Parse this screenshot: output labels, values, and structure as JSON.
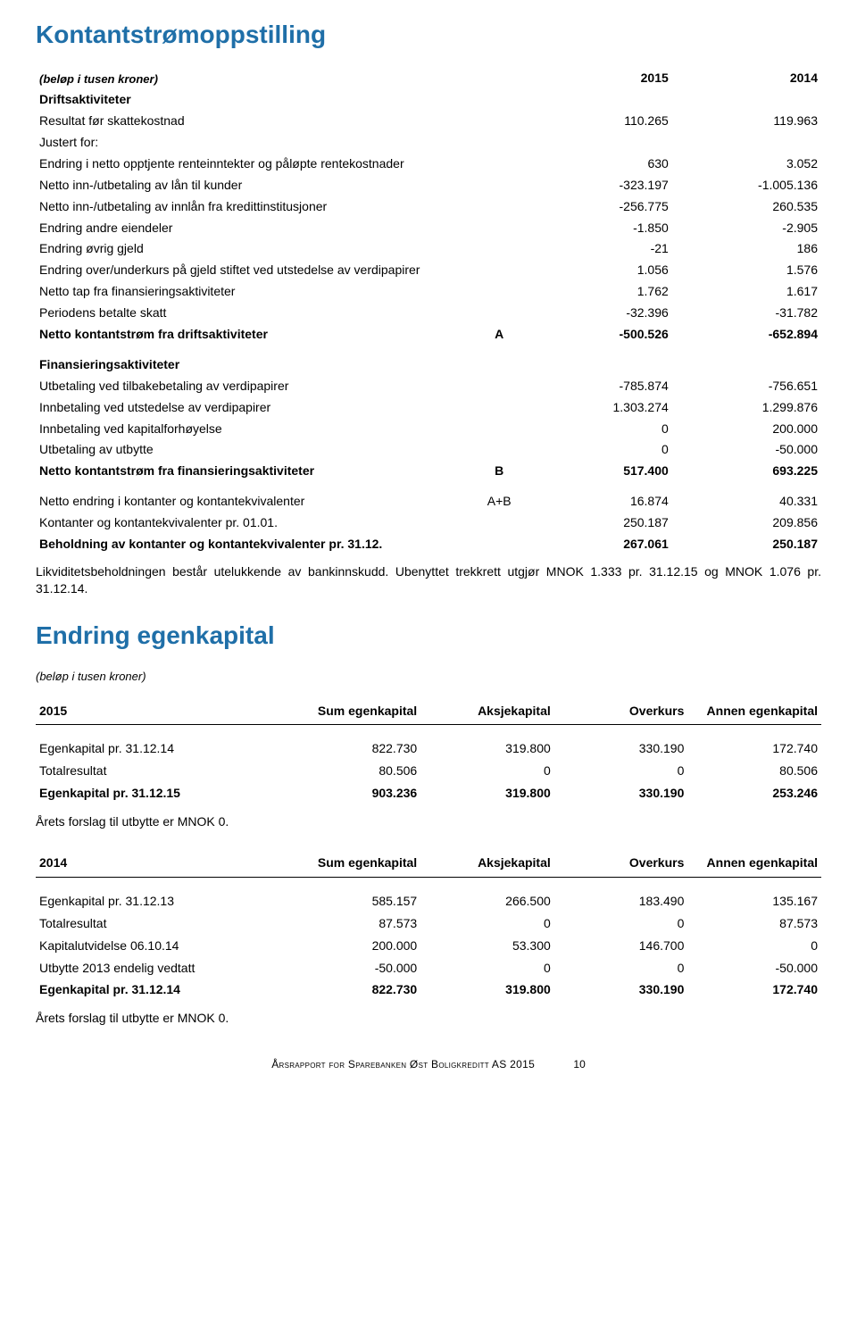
{
  "colors": {
    "accent": "#1f6fa8",
    "text": "#000000",
    "bg": "#ffffff"
  },
  "cashflow": {
    "title": "Kontantstrømoppstilling",
    "unitNote": "(beløp i tusen kroner)",
    "years": [
      "2015",
      "2014"
    ],
    "groups": [
      {
        "head": "Driftsaktiviteter",
        "rows": [
          {
            "label": "Resultat før skattekostnad",
            "tag": "",
            "v1": "110.265",
            "v2": "119.963"
          },
          {
            "label": "Justert for:",
            "tag": "",
            "v1": "",
            "v2": ""
          },
          {
            "label": "Endring i netto opptjente renteinntekter og påløpte rentekostnader",
            "tag": "",
            "v1": "630",
            "v2": "3.052"
          },
          {
            "label": "Netto inn-/utbetaling av lån til kunder",
            "tag": "",
            "v1": "-323.197",
            "v2": "-1.005.136"
          },
          {
            "label": "Netto inn-/utbetaling av innlån fra kredittinstitusjoner",
            "tag": "",
            "v1": "-256.775",
            "v2": "260.535"
          },
          {
            "label": "Endring andre eiendeler",
            "tag": "",
            "v1": "-1.850",
            "v2": "-2.905"
          },
          {
            "label": "Endring øvrig gjeld",
            "tag": "",
            "v1": "-21",
            "v2": "186"
          },
          {
            "label": "Endring over/underkurs på gjeld stiftet ved utstedelse av verdipapirer",
            "tag": "",
            "v1": "1.056",
            "v2": "1.576"
          },
          {
            "label": "Netto tap fra finansieringsaktiviteter",
            "tag": "",
            "v1": "1.762",
            "v2": "1.617"
          },
          {
            "label": "Periodens betalte skatt",
            "tag": "",
            "v1": "-32.396",
            "v2": "-31.782"
          }
        ],
        "total": {
          "label": "Netto kontantstrøm fra driftsaktiviteter",
          "tag": "A",
          "v1": "-500.526",
          "v2": "-652.894"
        }
      },
      {
        "head": "Finansieringsaktiviteter",
        "rows": [
          {
            "label": "Utbetaling ved tilbakebetaling av verdipapirer",
            "tag": "",
            "v1": "-785.874",
            "v2": "-756.651"
          },
          {
            "label": "Innbetaling ved utstedelse av verdipapirer",
            "tag": "",
            "v1": "1.303.274",
            "v2": "1.299.876"
          },
          {
            "label": "Innbetaling ved kapitalforhøyelse",
            "tag": "",
            "v1": "0",
            "v2": "200.000"
          },
          {
            "label": "Utbetaling av utbytte",
            "tag": "",
            "v1": "0",
            "v2": "-50.000"
          }
        ],
        "total": {
          "label": "Netto kontantstrøm fra finansieringsaktiviteter",
          "tag": "B",
          "v1": "517.400",
          "v2": "693.225"
        }
      }
    ],
    "summary": [
      {
        "label": "Netto endring i kontanter og kontantekvivalenter",
        "tag": "A+B",
        "v1": "16.874",
        "v2": "40.331",
        "bold": false
      },
      {
        "label": "Kontanter og kontantekvivalenter pr. 01.01.",
        "tag": "",
        "v1": "250.187",
        "v2": "209.856",
        "bold": false
      },
      {
        "label": "Beholdning av kontanter og kontantekvivalenter pr. 31.12.",
        "tag": "",
        "v1": "267.061",
        "v2": "250.187",
        "bold": true
      }
    ],
    "note": "Likviditetsbeholdningen består utelukkende av bankinnskudd. Ubenyttet trekkrett utgjør MNOK 1.333 pr. 31.12.15 og MNOK 1.076 pr. 31.12.14."
  },
  "equity": {
    "title": "Endring egenkapital",
    "unitNote": "(beløp i tusen kroner)",
    "columns": [
      "Sum egenkapital",
      "Aksjekapital",
      "Overkurs",
      "Annen egenkapital"
    ],
    "tables": [
      {
        "year": "2015",
        "rows": [
          {
            "label": "Egenkapital pr. 31.12.14",
            "v": [
              "822.730",
              "319.800",
              "330.190",
              "172.740"
            ],
            "bold": false
          },
          {
            "label": "Totalresultat",
            "v": [
              "80.506",
              "0",
              "0",
              "80.506"
            ],
            "bold": false
          },
          {
            "label": "Egenkapital pr. 31.12.15",
            "v": [
              "903.236",
              "319.800",
              "330.190",
              "253.246"
            ],
            "bold": true
          }
        ],
        "note": "Årets forslag til utbytte er MNOK 0."
      },
      {
        "year": "2014",
        "rows": [
          {
            "label": "Egenkapital pr. 31.12.13",
            "v": [
              "585.157",
              "266.500",
              "183.490",
              "135.167"
            ],
            "bold": false
          },
          {
            "label": "Totalresultat",
            "v": [
              "87.573",
              "0",
              "0",
              "87.573"
            ],
            "bold": false
          },
          {
            "label": "Kapitalutvidelse 06.10.14",
            "v": [
              "200.000",
              "53.300",
              "146.700",
              "0"
            ],
            "bold": false
          },
          {
            "label": "Utbytte 2013 endelig vedtatt",
            "v": [
              "-50.000",
              "0",
              "0",
              "-50.000"
            ],
            "bold": false
          },
          {
            "label": "Egenkapital pr. 31.12.14",
            "v": [
              "822.730",
              "319.800",
              "330.190",
              "172.740"
            ],
            "bold": true
          }
        ],
        "note": "Årets forslag til utbytte er MNOK 0."
      }
    ]
  },
  "footer": {
    "text": "Årsrapport for Sparebanken Øst Boligkreditt AS 2015",
    "page": "10"
  }
}
